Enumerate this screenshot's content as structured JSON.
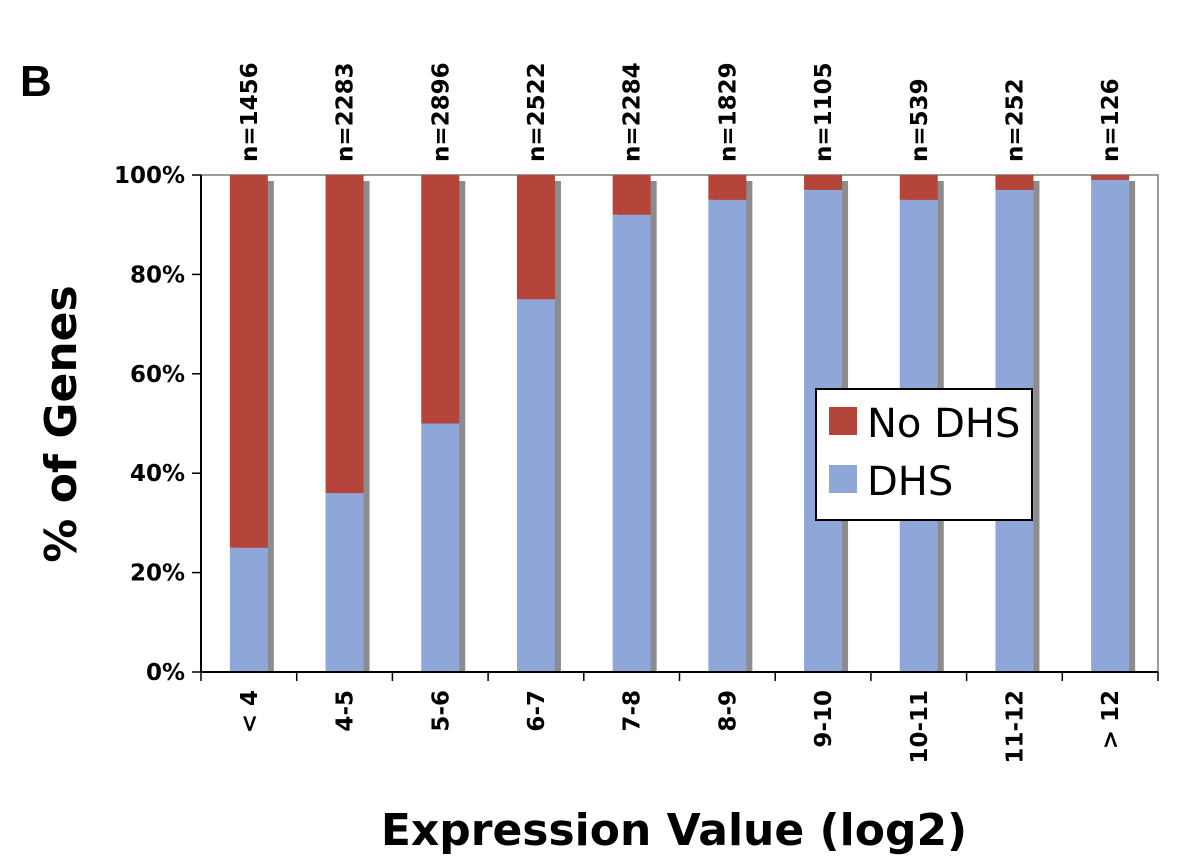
{
  "panel_label": "B",
  "chart_data": {
    "type": "bar",
    "stacked": true,
    "percent": true,
    "categories": [
      "< 4",
      "4-5",
      "5-6",
      "6-7",
      "7-8",
      "8-9",
      "9-10",
      "10-11",
      "11-12",
      "> 12"
    ],
    "counts": [
      "n=1456",
      "n=2283",
      "n=2896",
      "n=2522",
      "n=2284",
      "n=1829",
      "n=1105",
      "n=539",
      "n=252",
      "n=126"
    ],
    "series": [
      {
        "name": "DHS",
        "color": "#8EA6D8",
        "values": [
          25,
          36,
          50,
          75,
          92,
          95,
          97,
          95,
          97,
          99
        ]
      },
      {
        "name": "No DHS",
        "color": "#B5443B",
        "values": [
          75,
          64,
          50,
          25,
          8,
          5,
          3,
          5,
          3,
          1
        ]
      }
    ],
    "xlabel": "Expression Value (log2)",
    "ylabel": "% of Genes",
    "ylim": [
      0,
      100
    ],
    "yticks": [
      "0%",
      "20%",
      "40%",
      "60%",
      "80%",
      "100%"
    ],
    "grid": false,
    "legend": {
      "position": "center-right",
      "entries": [
        "No DHS",
        "DHS"
      ]
    }
  }
}
